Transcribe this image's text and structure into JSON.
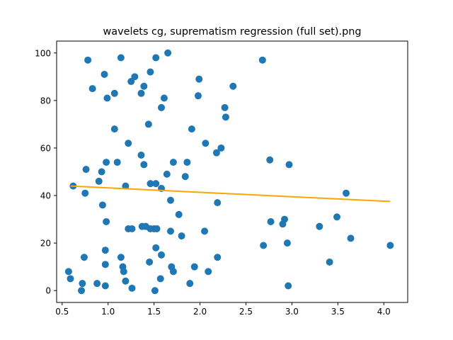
{
  "chart_data": {
    "type": "scatter",
    "title": "wavelets cg, suprematism regression (full set).png",
    "xlabel": "",
    "ylabel": "",
    "xlim": [
      0.44,
      4.26
    ],
    "ylim": [
      -5,
      105
    ],
    "xticks": [
      0.5,
      1.0,
      1.5,
      2.0,
      2.5,
      3.0,
      3.5,
      4.0
    ],
    "xtick_labels": [
      "0.5",
      "1.0",
      "1.5",
      "2.0",
      "2.5",
      "3.0",
      "3.5",
      "4.0"
    ],
    "yticks": [
      0,
      20,
      40,
      60,
      80,
      100
    ],
    "ytick_labels": [
      "0",
      "20",
      "40",
      "60",
      "80",
      "100"
    ],
    "grid": false,
    "legend": "none",
    "series": [
      {
        "type": "scatter",
        "color": "#1f77b4",
        "points": [
          [
            0.78,
            97
          ],
          [
            0.96,
            91
          ],
          [
            0.83,
            85
          ],
          [
            0.99,
            81
          ],
          [
            1.07,
            83
          ],
          [
            1.14,
            98
          ],
          [
            1.25,
            88
          ],
          [
            1.29,
            90
          ],
          [
            1.36,
            83
          ],
          [
            1.39,
            86
          ],
          [
            1.46,
            92
          ],
          [
            1.52,
            98
          ],
          [
            1.58,
            77
          ],
          [
            1.61,
            81
          ],
          [
            1.65,
            100
          ],
          [
            1.99,
            89
          ],
          [
            1.98,
            82
          ],
          [
            2.27,
            77
          ],
          [
            2.28,
            73
          ],
          [
            2.36,
            86
          ],
          [
            2.68,
            97
          ],
          [
            1.07,
            68
          ],
          [
            1.44,
            70
          ],
          [
            1.91,
            68
          ],
          [
            1.22,
            62
          ],
          [
            1.36,
            57
          ],
          [
            1.39,
            53
          ],
          [
            2.06,
            62
          ],
          [
            2.18,
            58
          ],
          [
            2.23,
            60
          ],
          [
            0.98,
            54
          ],
          [
            1.1,
            54
          ],
          [
            1.64,
            49
          ],
          [
            1.71,
            54
          ],
          [
            1.86,
            54
          ],
          [
            1.84,
            48
          ],
          [
            0.76,
            51
          ],
          [
            0.93,
            50
          ],
          [
            0.9,
            46
          ],
          [
            1.19,
            44
          ],
          [
            1.46,
            45
          ],
          [
            1.52,
            45
          ],
          [
            1.58,
            43
          ],
          [
            0.62,
            44
          ],
          [
            0.75,
            41
          ],
          [
            1.68,
            38
          ],
          [
            0.94,
            36
          ],
          [
            2.19,
            37
          ],
          [
            2.76,
            55
          ],
          [
            2.97,
            53
          ],
          [
            3.59,
            41
          ],
          [
            0.98,
            29
          ],
          [
            1.22,
            26
          ],
          [
            1.26,
            26
          ],
          [
            1.37,
            27
          ],
          [
            1.41,
            27
          ],
          [
            1.46,
            26
          ],
          [
            1.5,
            26
          ],
          [
            1.53,
            26
          ],
          [
            1.68,
            25
          ],
          [
            1.77,
            32
          ],
          [
            1.8,
            23
          ],
          [
            2.05,
            25
          ],
          [
            2.77,
            29
          ],
          [
            2.9,
            28
          ],
          [
            2.92,
            30
          ],
          [
            3.3,
            27
          ],
          [
            3.49,
            31
          ],
          [
            3.64,
            22
          ],
          [
            0.74,
            14
          ],
          [
            0.97,
            17
          ],
          [
            1.14,
            14
          ],
          [
            1.52,
            18
          ],
          [
            1.58,
            15
          ],
          [
            2.19,
            14
          ],
          [
            2.69,
            19
          ],
          [
            2.95,
            20
          ],
          [
            4.07,
            19
          ],
          [
            0.97,
            11
          ],
          [
            1.16,
            10
          ],
          [
            1.17,
            8
          ],
          [
            1.45,
            12
          ],
          [
            1.69,
            10
          ],
          [
            1.71,
            8
          ],
          [
            1.94,
            10
          ],
          [
            2.09,
            8
          ],
          [
            3.41,
            12
          ],
          [
            0.57,
            8
          ],
          [
            0.59,
            5
          ],
          [
            0.72,
            3
          ],
          [
            0.71,
            0
          ],
          [
            0.88,
            3
          ],
          [
            0.97,
            2
          ],
          [
            1.19,
            4
          ],
          [
            1.26,
            1
          ],
          [
            1.51,
            0
          ],
          [
            1.57,
            5
          ],
          [
            1.89,
            3
          ],
          [
            2.96,
            2
          ]
        ]
      },
      {
        "type": "line",
        "color": "#ffa500",
        "x": [
          0.59,
          4.07
        ],
        "y": [
          44,
          37.5
        ]
      }
    ]
  }
}
